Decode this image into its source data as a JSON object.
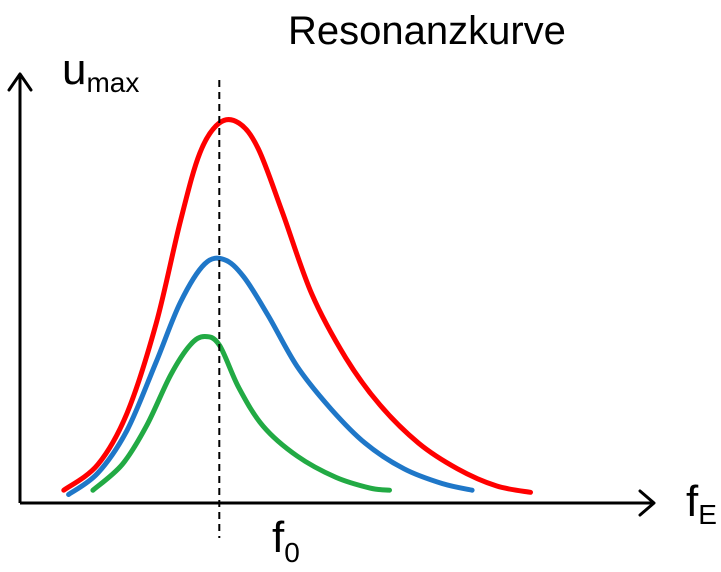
{
  "chart_data": {
    "type": "line",
    "title": "Resonanzkurve",
    "ylabel": {
      "main": "u",
      "sub": "max"
    },
    "xlabel": {
      "main": "f",
      "sub": "E"
    },
    "marker": {
      "main": "f",
      "sub": "0",
      "x": 4.1,
      "style": "dashed"
    },
    "xlim": [
      0,
      13
    ],
    "ylim": [
      0,
      10
    ],
    "grid": false,
    "legend": "none",
    "series": [
      {
        "color": "#ff0000",
        "points": [
          [
            0.9,
            0.3
          ],
          [
            1.6,
            0.9
          ],
          [
            2.2,
            2.1
          ],
          [
            2.8,
            4.2
          ],
          [
            3.3,
            6.6
          ],
          [
            3.7,
            8.2
          ],
          [
            4.1,
            8.9
          ],
          [
            4.5,
            8.9
          ],
          [
            4.9,
            8.3
          ],
          [
            5.4,
            6.8
          ],
          [
            6.0,
            4.9
          ],
          [
            6.7,
            3.4
          ],
          [
            7.4,
            2.3
          ],
          [
            8.2,
            1.4
          ],
          [
            9.0,
            0.8
          ],
          [
            9.8,
            0.4
          ],
          [
            10.5,
            0.25
          ]
        ]
      },
      {
        "color": "#1f77c8",
        "points": [
          [
            1.0,
            0.2
          ],
          [
            1.6,
            0.7
          ],
          [
            2.2,
            1.7
          ],
          [
            2.8,
            3.3
          ],
          [
            3.3,
            4.7
          ],
          [
            3.8,
            5.6
          ],
          [
            4.2,
            5.7
          ],
          [
            4.6,
            5.3
          ],
          [
            5.1,
            4.4
          ],
          [
            5.7,
            3.2
          ],
          [
            6.4,
            2.2
          ],
          [
            7.1,
            1.4
          ],
          [
            7.9,
            0.8
          ],
          [
            8.7,
            0.45
          ],
          [
            9.3,
            0.3
          ]
        ]
      },
      {
        "color": "#22aa44",
        "points": [
          [
            1.5,
            0.3
          ],
          [
            2.1,
            0.9
          ],
          [
            2.6,
            1.8
          ],
          [
            3.1,
            3.0
          ],
          [
            3.5,
            3.7
          ],
          [
            3.8,
            3.9
          ],
          [
            4.1,
            3.7
          ],
          [
            4.5,
            2.7
          ],
          [
            5.0,
            1.8
          ],
          [
            5.7,
            1.1
          ],
          [
            6.5,
            0.6
          ],
          [
            7.2,
            0.35
          ],
          [
            7.6,
            0.3
          ]
        ]
      }
    ]
  }
}
